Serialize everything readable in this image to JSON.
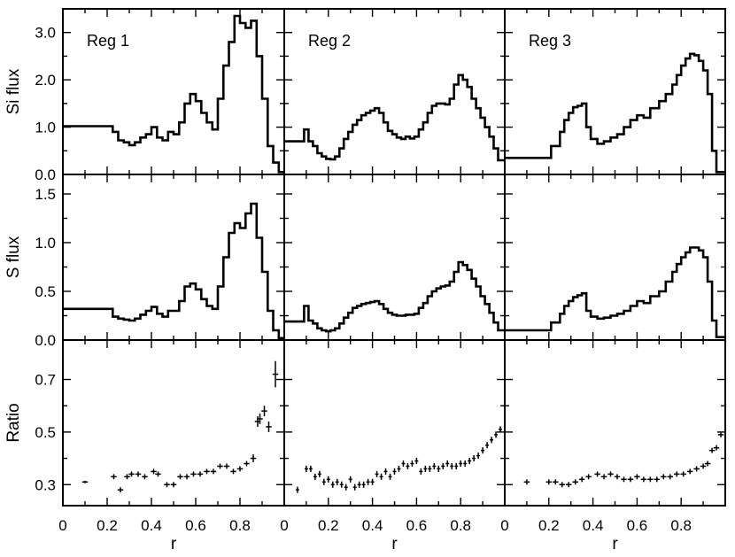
{
  "chart_data": {
    "type": "line",
    "layout": "3x3 grid of panels, shared x axis per column, shared y axis per row",
    "x": {
      "label": "r",
      "range": [
        0,
        1.0
      ],
      "ticks": [
        0,
        0.2,
        0.4,
        0.6,
        0.8
      ],
      "tick_labels": [
        "0",
        "0.2",
        "0.4",
        "0.6",
        "0.8"
      ]
    },
    "rows": [
      {
        "key": "si",
        "label": "Si flux",
        "ylim": [
          0,
          3.5
        ],
        "ticks": [
          0,
          1,
          2,
          3
        ],
        "tick_labels": [
          "0.0",
          "1.0",
          "2.0",
          "3.0"
        ]
      },
      {
        "key": "s",
        "label": "S flux",
        "ylim": [
          0,
          1.7
        ],
        "ticks": [
          0,
          0.5,
          1.0,
          1.5
        ],
        "tick_labels": [
          "0.0",
          "0.5",
          "1.0",
          "1.5"
        ]
      },
      {
        "key": "ratio",
        "label": "Ratio",
        "ylim": [
          0.22,
          0.85
        ],
        "ticks": [
          0.3,
          0.5,
          0.7
        ],
        "tick_labels": [
          "0.3",
          "0.5",
          "0.7"
        ]
      }
    ],
    "regions": [
      {
        "name": "Reg 1",
        "si": {
          "edges": [
            0,
            0.225,
            0.25,
            0.275,
            0.3,
            0.325,
            0.35,
            0.375,
            0.4,
            0.425,
            0.45,
            0.475,
            0.5,
            0.525,
            0.55,
            0.575,
            0.6,
            0.625,
            0.65,
            0.675,
            0.7,
            0.725,
            0.75,
            0.775,
            0.8,
            0.825,
            0.85,
            0.875,
            0.9,
            0.925,
            0.95,
            0.975,
            1.0
          ],
          "values": [
            1.02,
            0.9,
            0.72,
            0.68,
            0.62,
            0.68,
            0.78,
            0.85,
            1.0,
            0.78,
            0.72,
            0.9,
            0.85,
            1.1,
            1.5,
            1.7,
            1.55,
            1.3,
            1.1,
            0.95,
            1.6,
            2.3,
            2.8,
            3.35,
            3.2,
            3.1,
            3.25,
            2.5,
            1.6,
            0.6,
            0.25,
            0.05
          ]
        },
        "s": {
          "edges": [
            0,
            0.225,
            0.25,
            0.275,
            0.3,
            0.325,
            0.35,
            0.375,
            0.4,
            0.425,
            0.45,
            0.475,
            0.5,
            0.525,
            0.55,
            0.575,
            0.6,
            0.625,
            0.65,
            0.675,
            0.7,
            0.725,
            0.75,
            0.775,
            0.8,
            0.825,
            0.85,
            0.875,
            0.9,
            0.925,
            0.95,
            0.975,
            1.0
          ],
          "values": [
            0.32,
            0.24,
            0.22,
            0.21,
            0.2,
            0.22,
            0.26,
            0.3,
            0.34,
            0.27,
            0.24,
            0.3,
            0.3,
            0.4,
            0.55,
            0.58,
            0.52,
            0.42,
            0.35,
            0.32,
            0.55,
            0.85,
            1.1,
            1.2,
            1.15,
            1.3,
            1.4,
            1.05,
            0.7,
            0.3,
            0.1,
            0.02
          ]
        },
        "ratio": {
          "x": [
            0.1,
            0.23,
            0.26,
            0.29,
            0.31,
            0.34,
            0.37,
            0.41,
            0.43,
            0.47,
            0.5,
            0.53,
            0.56,
            0.59,
            0.62,
            0.65,
            0.68,
            0.71,
            0.74,
            0.77,
            0.8,
            0.83,
            0.86,
            0.88,
            0.89,
            0.91,
            0.93,
            0.96
          ],
          "y": [
            0.31,
            0.33,
            0.28,
            0.33,
            0.34,
            0.34,
            0.33,
            0.35,
            0.34,
            0.3,
            0.3,
            0.33,
            0.33,
            0.34,
            0.34,
            0.35,
            0.35,
            0.37,
            0.37,
            0.35,
            0.36,
            0.38,
            0.4,
            0.54,
            0.55,
            0.58,
            0.52,
            0.72
          ],
          "xerr": 0.013,
          "yerr": [
            0.005,
            0.01,
            0.01,
            0.01,
            0.01,
            0.01,
            0.01,
            0.01,
            0.01,
            0.01,
            0.01,
            0.01,
            0.01,
            0.01,
            0.01,
            0.01,
            0.01,
            0.01,
            0.01,
            0.01,
            0.01,
            0.01,
            0.015,
            0.02,
            0.02,
            0.02,
            0.02,
            0.05
          ]
        }
      },
      {
        "name": "Reg 2",
        "si": {
          "edges": [
            0,
            0.09,
            0.11,
            0.13,
            0.15,
            0.17,
            0.19,
            0.21,
            0.23,
            0.25,
            0.27,
            0.29,
            0.31,
            0.33,
            0.35,
            0.37,
            0.39,
            0.41,
            0.43,
            0.45,
            0.47,
            0.49,
            0.51,
            0.53,
            0.55,
            0.57,
            0.59,
            0.61,
            0.63,
            0.65,
            0.67,
            0.69,
            0.71,
            0.73,
            0.75,
            0.77,
            0.79,
            0.81,
            0.83,
            0.85,
            0.87,
            0.89,
            0.91,
            0.93,
            0.95,
            0.97,
            1.0
          ],
          "values": [
            0.7,
            0.95,
            0.7,
            0.6,
            0.45,
            0.38,
            0.33,
            0.32,
            0.38,
            0.55,
            0.75,
            0.9,
            1.05,
            1.15,
            1.25,
            1.3,
            1.35,
            1.4,
            1.3,
            1.1,
            0.92,
            0.85,
            0.78,
            0.75,
            0.8,
            0.76,
            0.8,
            0.95,
            1.1,
            1.3,
            1.45,
            1.5,
            1.5,
            1.48,
            1.6,
            1.9,
            2.1,
            2.0,
            1.85,
            1.6,
            1.4,
            1.2,
            1.0,
            0.8,
            0.55,
            0.3
          ]
        },
        "s": {
          "edges": [
            0,
            0.09,
            0.11,
            0.13,
            0.15,
            0.17,
            0.19,
            0.21,
            0.23,
            0.25,
            0.27,
            0.29,
            0.31,
            0.33,
            0.35,
            0.37,
            0.39,
            0.41,
            0.43,
            0.45,
            0.47,
            0.49,
            0.51,
            0.53,
            0.55,
            0.57,
            0.59,
            0.61,
            0.63,
            0.65,
            0.67,
            0.69,
            0.71,
            0.73,
            0.75,
            0.77,
            0.79,
            0.81,
            0.83,
            0.85,
            0.87,
            0.89,
            0.91,
            0.93,
            0.95,
            0.97,
            1.0
          ],
          "values": [
            0.19,
            0.35,
            0.2,
            0.17,
            0.12,
            0.1,
            0.09,
            0.1,
            0.12,
            0.17,
            0.23,
            0.28,
            0.33,
            0.35,
            0.37,
            0.38,
            0.39,
            0.4,
            0.37,
            0.32,
            0.28,
            0.26,
            0.25,
            0.25,
            0.26,
            0.26,
            0.27,
            0.33,
            0.38,
            0.45,
            0.5,
            0.53,
            0.55,
            0.56,
            0.6,
            0.7,
            0.8,
            0.77,
            0.72,
            0.63,
            0.55,
            0.45,
            0.37,
            0.28,
            0.18,
            0.1
          ]
        },
        "ratio": {
          "x": [
            0.06,
            0.1,
            0.12,
            0.14,
            0.16,
            0.18,
            0.2,
            0.22,
            0.24,
            0.26,
            0.28,
            0.3,
            0.32,
            0.34,
            0.36,
            0.38,
            0.4,
            0.42,
            0.44,
            0.46,
            0.48,
            0.5,
            0.52,
            0.54,
            0.56,
            0.58,
            0.6,
            0.62,
            0.64,
            0.66,
            0.68,
            0.7,
            0.72,
            0.74,
            0.76,
            0.78,
            0.8,
            0.82,
            0.84,
            0.86,
            0.88,
            0.9,
            0.92,
            0.94,
            0.96,
            0.98
          ],
          "y": [
            0.28,
            0.36,
            0.36,
            0.33,
            0.34,
            0.31,
            0.32,
            0.3,
            0.31,
            0.3,
            0.29,
            0.32,
            0.29,
            0.3,
            0.3,
            0.31,
            0.31,
            0.34,
            0.33,
            0.35,
            0.33,
            0.35,
            0.36,
            0.38,
            0.37,
            0.38,
            0.39,
            0.35,
            0.36,
            0.36,
            0.37,
            0.36,
            0.37,
            0.38,
            0.37,
            0.37,
            0.38,
            0.38,
            0.39,
            0.4,
            0.41,
            0.43,
            0.45,
            0.47,
            0.49,
            0.51
          ],
          "xerr": 0.008,
          "yerr": 0.012
        }
      },
      {
        "name": "Reg 3",
        "si": {
          "edges": [
            0,
            0.21,
            0.25,
            0.27,
            0.29,
            0.31,
            0.33,
            0.35,
            0.37,
            0.39,
            0.42,
            0.45,
            0.48,
            0.51,
            0.54,
            0.57,
            0.6,
            0.63,
            0.66,
            0.7,
            0.73,
            0.76,
            0.78,
            0.8,
            0.82,
            0.84,
            0.86,
            0.88,
            0.9,
            0.92,
            0.94,
            0.96,
            1.0
          ],
          "values": [
            0.35,
            0.6,
            0.9,
            1.15,
            1.3,
            1.42,
            1.45,
            1.5,
            1.0,
            0.75,
            0.65,
            0.7,
            0.78,
            0.85,
            1.0,
            1.15,
            1.25,
            1.2,
            1.4,
            1.55,
            1.7,
            1.9,
            2.1,
            2.3,
            2.45,
            2.55,
            2.52,
            2.4,
            2.2,
            1.7,
            0.5,
            0.05
          ]
        },
        "s": {
          "edges": [
            0,
            0.21,
            0.25,
            0.27,
            0.29,
            0.31,
            0.33,
            0.35,
            0.37,
            0.39,
            0.42,
            0.45,
            0.48,
            0.51,
            0.54,
            0.57,
            0.6,
            0.63,
            0.66,
            0.7,
            0.73,
            0.76,
            0.78,
            0.8,
            0.82,
            0.84,
            0.86,
            0.88,
            0.9,
            0.92,
            0.94,
            0.96,
            1.0
          ],
          "values": [
            0.1,
            0.18,
            0.27,
            0.35,
            0.4,
            0.44,
            0.46,
            0.48,
            0.3,
            0.24,
            0.22,
            0.23,
            0.25,
            0.27,
            0.3,
            0.35,
            0.4,
            0.38,
            0.45,
            0.5,
            0.6,
            0.7,
            0.78,
            0.85,
            0.9,
            0.95,
            0.95,
            0.92,
            0.85,
            0.6,
            0.2,
            0.03
          ]
        },
        "ratio": {
          "x": [
            0.1,
            0.2,
            0.23,
            0.26,
            0.29,
            0.32,
            0.35,
            0.38,
            0.42,
            0.45,
            0.48,
            0.51,
            0.54,
            0.57,
            0.6,
            0.63,
            0.66,
            0.69,
            0.72,
            0.75,
            0.78,
            0.81,
            0.84,
            0.87,
            0.9,
            0.92,
            0.94,
            0.96,
            0.98
          ],
          "y": [
            0.31,
            0.31,
            0.31,
            0.3,
            0.3,
            0.31,
            0.32,
            0.33,
            0.34,
            0.33,
            0.34,
            0.33,
            0.32,
            0.32,
            0.33,
            0.32,
            0.32,
            0.32,
            0.33,
            0.33,
            0.34,
            0.34,
            0.35,
            0.36,
            0.37,
            0.38,
            0.43,
            0.44,
            0.49
          ],
          "xerr": 0.013,
          "yerr": 0.01
        }
      }
    ]
  }
}
